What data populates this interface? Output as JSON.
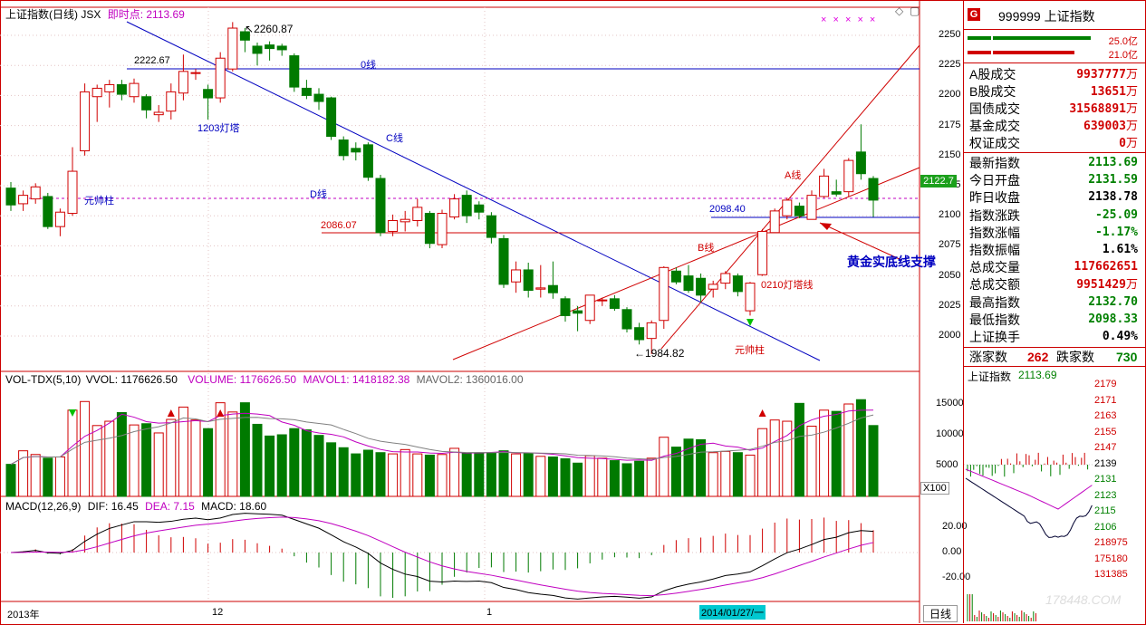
{
  "header": {
    "title": "上证指数(日线) JSX",
    "realtime_label": "即时点: 2113.69"
  },
  "main_chart": {
    "y_ticks": [
      "2250",
      "2225",
      "2200",
      "2175",
      "2150",
      "2125",
      "2100",
      "2075",
      "2050",
      "2025",
      "2000"
    ],
    "current_price_tag": "2122.7",
    "annotations": {
      "high": "2260.87",
      "low": "1984.82",
      "level_2222": "2222.67",
      "level_2086": "2086.07",
      "level_2098": "2098.40",
      "line_0": "0线",
      "line_c": "C线",
      "line_d": "D线",
      "line_a": "A线",
      "line_b": "B线",
      "tower_1203": "1203灯塔",
      "tower_0210": "0210灯塔线",
      "yuanshuai_left": "元帅柱",
      "yuanshuai_bottom": "元帅柱",
      "support_text": "黄金实底线支撑"
    },
    "star_marks": "× × × × ×",
    "colors": {
      "up": "#d00000",
      "down": "#007a00",
      "line_blue": "#0000c0",
      "line_red": "#d00000",
      "pink": "#c000c0"
    }
  },
  "chart_data": [
    {
      "type": "candlestick",
      "title": "上证指数(日线)",
      "ylim": [
        1975,
        2265
      ],
      "candles": [
        {
          "o": 2123,
          "c": 2109,
          "h": 2128,
          "l": 2104
        },
        {
          "o": 2110,
          "c": 2117,
          "h": 2121,
          "l": 2104
        },
        {
          "o": 2114,
          "c": 2124,
          "h": 2127,
          "l": 2110
        },
        {
          "o": 2116,
          "c": 2091,
          "h": 2119,
          "l": 2089
        },
        {
          "o": 2091,
          "c": 2103,
          "h": 2106,
          "l": 2083
        },
        {
          "o": 2102,
          "c": 2137,
          "h": 2157,
          "l": 2100
        },
        {
          "o": 2154,
          "c": 2203,
          "h": 2210,
          "l": 2150
        },
        {
          "o": 2199,
          "c": 2206,
          "h": 2209,
          "l": 2178
        },
        {
          "o": 2203,
          "c": 2209,
          "h": 2213,
          "l": 2190
        },
        {
          "o": 2209,
          "c": 2201,
          "h": 2213,
          "l": 2196
        },
        {
          "o": 2199,
          "c": 2210,
          "h": 2214,
          "l": 2194
        },
        {
          "o": 2199,
          "c": 2188,
          "h": 2201,
          "l": 2181
        },
        {
          "o": 2184,
          "c": 2186,
          "h": 2192,
          "l": 2178
        },
        {
          "o": 2187,
          "c": 2203,
          "h": 2210,
          "l": 2180
        },
        {
          "o": 2202,
          "c": 2220,
          "h": 2234,
          "l": 2196
        },
        {
          "o": 2219,
          "c": 2219,
          "h": 2222,
          "l": 2213
        },
        {
          "o": 2205,
          "c": 2198,
          "h": 2209,
          "l": 2180
        },
        {
          "o": 2198,
          "c": 2231,
          "h": 2236,
          "l": 2194
        },
        {
          "o": 2222,
          "c": 2256,
          "h": 2261,
          "l": 2220
        },
        {
          "o": 2253,
          "c": 2246,
          "h": 2256,
          "l": 2236
        },
        {
          "o": 2241,
          "c": 2235,
          "h": 2244,
          "l": 2225
        },
        {
          "o": 2242,
          "c": 2239,
          "h": 2245,
          "l": 2229
        },
        {
          "o": 2241,
          "c": 2238,
          "h": 2243,
          "l": 2233
        },
        {
          "o": 2233,
          "c": 2207,
          "h": 2235,
          "l": 2203
        },
        {
          "o": 2206,
          "c": 2200,
          "h": 2213,
          "l": 2197
        },
        {
          "o": 2201,
          "c": 2195,
          "h": 2206,
          "l": 2188
        },
        {
          "o": 2198,
          "c": 2166,
          "h": 2199,
          "l": 2163
        },
        {
          "o": 2163,
          "c": 2150,
          "h": 2166,
          "l": 2146
        },
        {
          "o": 2156,
          "c": 2153,
          "h": 2161,
          "l": 2146
        },
        {
          "o": 2159,
          "c": 2132,
          "h": 2161,
          "l": 2129
        },
        {
          "o": 2131,
          "c": 2086,
          "h": 2134,
          "l": 2083
        },
        {
          "o": 2087,
          "c": 2096,
          "h": 2101,
          "l": 2083
        },
        {
          "o": 2095,
          "c": 2097,
          "h": 2104,
          "l": 2087
        },
        {
          "o": 2096,
          "c": 2107,
          "h": 2114,
          "l": 2091
        },
        {
          "o": 2102,
          "c": 2077,
          "h": 2104,
          "l": 2073
        },
        {
          "o": 2076,
          "c": 2102,
          "h": 2105,
          "l": 2073
        },
        {
          "o": 2099,
          "c": 2114,
          "h": 2118,
          "l": 2097
        },
        {
          "o": 2117,
          "c": 2100,
          "h": 2121,
          "l": 2094
        },
        {
          "o": 2109,
          "c": 2103,
          "h": 2112,
          "l": 2097
        },
        {
          "o": 2100,
          "c": 2082,
          "h": 2103,
          "l": 2077
        },
        {
          "o": 2081,
          "c": 2043,
          "h": 2084,
          "l": 2040
        },
        {
          "o": 2045,
          "c": 2055,
          "h": 2062,
          "l": 2036
        },
        {
          "o": 2055,
          "c": 2038,
          "h": 2061,
          "l": 2032
        },
        {
          "o": 2039,
          "c": 2040,
          "h": 2059,
          "l": 2032
        },
        {
          "o": 2042,
          "c": 2036,
          "h": 2062,
          "l": 2031
        },
        {
          "o": 2031,
          "c": 2017,
          "h": 2033,
          "l": 2012
        },
        {
          "o": 2021,
          "c": 2019,
          "h": 2025,
          "l": 2004
        },
        {
          "o": 2013,
          "c": 2034,
          "h": 2034,
          "l": 2010
        },
        {
          "o": 2030,
          "c": 2030,
          "h": 2032,
          "l": 2025
        },
        {
          "o": 2031,
          "c": 2023,
          "h": 2034,
          "l": 2021
        },
        {
          "o": 2022,
          "c": 2006,
          "h": 2024,
          "l": 2003
        },
        {
          "o": 2007,
          "c": 1997,
          "h": 2011,
          "l": 1993
        },
        {
          "o": 1998,
          "c": 2011,
          "h": 2013,
          "l": 1985
        },
        {
          "o": 2013,
          "c": 2057,
          "h": 2058,
          "l": 2006
        },
        {
          "o": 2054,
          "c": 2045,
          "h": 2057,
          "l": 2043
        },
        {
          "o": 2050,
          "c": 2038,
          "h": 2059,
          "l": 2036
        },
        {
          "o": 2048,
          "c": 2034,
          "h": 2052,
          "l": 2028
        },
        {
          "o": 2039,
          "c": 2043,
          "h": 2046,
          "l": 2032
        },
        {
          "o": 2044,
          "c": 2052,
          "h": 2054,
          "l": 2039
        },
        {
          "o": 2050,
          "c": 2037,
          "h": 2052,
          "l": 2033
        },
        {
          "o": 2021,
          "c": 2044,
          "h": 2045,
          "l": 2017
        },
        {
          "o": 2051,
          "c": 2087,
          "h": 2089,
          "l": 2050
        },
        {
          "o": 2086,
          "c": 2104,
          "h": 2106,
          "l": 2086
        },
        {
          "o": 2100,
          "c": 2113,
          "h": 2115,
          "l": 2097
        },
        {
          "o": 2108,
          "c": 2100,
          "h": 2111,
          "l": 2098
        },
        {
          "o": 2097,
          "c": 2117,
          "h": 2121,
          "l": 2097
        },
        {
          "o": 2116,
          "c": 2133,
          "h": 2139,
          "l": 2115
        },
        {
          "o": 2120,
          "c": 2118,
          "h": 2130,
          "l": 2116
        },
        {
          "o": 2120,
          "c": 2146,
          "h": 2148,
          "l": 2116
        },
        {
          "o": 2153,
          "c": 2135,
          "h": 2176,
          "l": 2130
        },
        {
          "o": 2131,
          "c": 2113,
          "h": 2133,
          "l": 2099
        }
      ]
    },
    {
      "type": "bar",
      "title": "VOL-TDX(5,10)",
      "ylim": [
        0,
        18000
      ],
      "ytick_labels": [
        "15000",
        "10000",
        "5000"
      ],
      "unit_label": "X100",
      "values": [
        5200,
        7400,
        6800,
        6200,
        6400,
        14000,
        15400,
        11500,
        12200,
        13600,
        11600,
        11800,
        10300,
        12500,
        14500,
        12400,
        11000,
        15200,
        13700,
        15200,
        11700,
        9800,
        10000,
        11000,
        10800,
        9900,
        8700,
        7900,
        6900,
        7500,
        7100,
        6900,
        7600,
        6900,
        6700,
        6800,
        7800,
        7000,
        7000,
        7100,
        7400,
        6900,
        7000,
        6500,
        6400,
        6100,
        5400,
        6600,
        6200,
        5800,
        5300,
        5700,
        6200,
        9600,
        8000,
        9300,
        9200,
        7100,
        7300,
        7100,
        6700,
        11000,
        12400,
        12200,
        15100,
        11400,
        14000,
        13800,
        15000,
        15700,
        11500
      ]
    },
    {
      "type": "line",
      "title": "MACD(12,26,9)",
      "ytick_labels": [
        "20.00",
        "0.00",
        "-20.00"
      ]
    }
  ],
  "volume": {
    "title": "VOL-TDX(5,10)",
    "vvol": "VVOL: 1176626.50",
    "volume": "VOLUME: 1176626.50",
    "mavol1": "MAVOL1: 1418182.38",
    "mavol2": "MAVOL2: 1360016.00",
    "unit": "X100"
  },
  "macd": {
    "title": "MACD(12,26,9)",
    "dif": "DIF: 16.45",
    "dea": "DEA: 7.15",
    "macd": "MACD: 18.60"
  },
  "x_axis": {
    "year_label": "2013年",
    "month_12": "12",
    "month_1": "1",
    "cursor_date": "2014/01/27/一"
  },
  "right_panel": {
    "badge": "G",
    "title": "999999 上证指数",
    "bar_up": "25.0亿",
    "bar_down": "21.0亿",
    "stats1": [
      {
        "label": "A股成交",
        "value": "9937777",
        "unit": "万"
      },
      {
        "label": "B股成交",
        "value": "13651",
        "unit": "万"
      },
      {
        "label": "国债成交",
        "value": "31568891",
        "unit": "万"
      },
      {
        "label": "基金成交",
        "value": "639003",
        "unit": "万"
      },
      {
        "label": "权证成交",
        "value": "0",
        "unit": "万"
      }
    ],
    "stats2": [
      {
        "label": "最新指数",
        "value": "2113.69",
        "color": "dn"
      },
      {
        "label": "今日开盘",
        "value": "2131.59",
        "color": "dn"
      },
      {
        "label": "昨日收盘",
        "value": "2138.78",
        "color": "black"
      },
      {
        "label": "指数涨跌",
        "value": "-25.09",
        "color": "dn"
      },
      {
        "label": "指数涨幅",
        "value": "-1.17%",
        "color": "dn"
      },
      {
        "label": "指数振幅",
        "value": "1.61%",
        "color": "black"
      },
      {
        "label": "总成交量",
        "value": "117662651",
        "color": "up"
      },
      {
        "label": "总成交额",
        "value": "9951429",
        "unit": "万",
        "color": "up"
      },
      {
        "label": "最高指数",
        "value": "2132.70",
        "color": "dn"
      },
      {
        "label": "最低指数",
        "value": "2098.33",
        "color": "dn"
      },
      {
        "label": "上证换手",
        "value": "0.49%",
        "color": "black"
      }
    ],
    "rise_label": "涨家数",
    "rise_count": "262",
    "fall_label": "跌家数",
    "fall_count": "730",
    "mini_title": "上证指数",
    "mini_price": "2113.69",
    "mini_ticks": [
      "2179",
      "2171",
      "2163",
      "2155",
      "2147",
      "2139",
      "2131",
      "2123",
      "2115",
      "2106",
      "218975",
      "175180",
      "131385"
    ],
    "period_label": "日线",
    "watermark": "178448.COM"
  }
}
